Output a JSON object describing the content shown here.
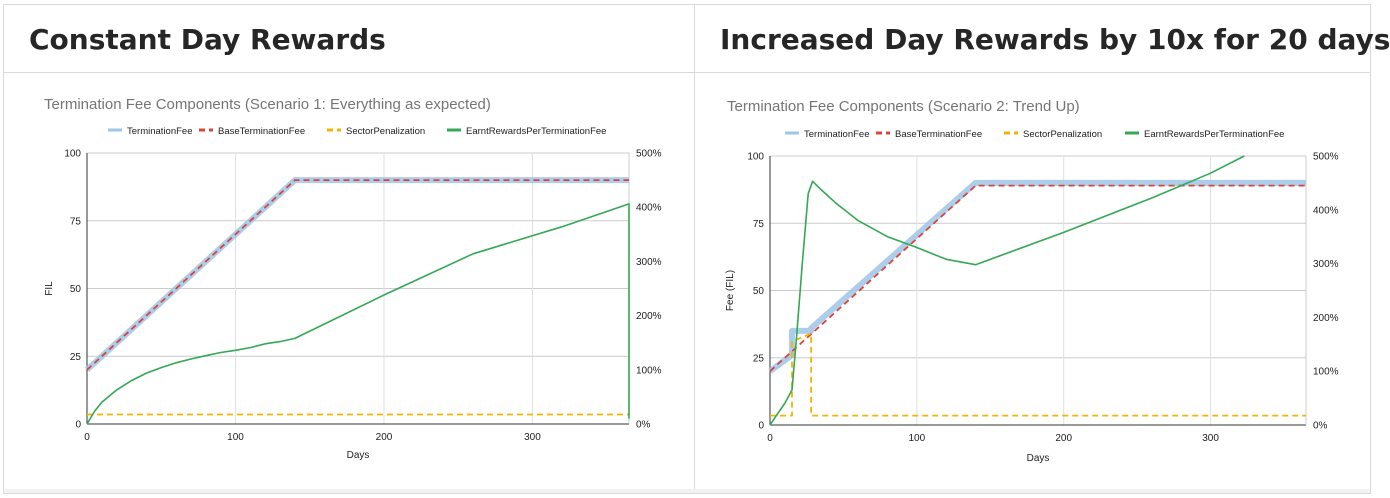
{
  "panels": [
    {
      "heading": "Constant Day Rewards"
    },
    {
      "heading": "Increased Day Rewards by 10x for 20 days"
    }
  ],
  "colors": {
    "TerminationFee": "#9fc5e8",
    "BaseTerminationFee": "#db4437",
    "SectorPenalization": "#f4b400",
    "EarntRewardsPerTerminationFee": "#34a853"
  },
  "chart_data": [
    {
      "type": "line",
      "title": "Termination Fee Components (Scenario 1: Everything as expected)",
      "xlabel": "Days",
      "ylabel": "FIL",
      "xlim": [
        0,
        365
      ],
      "ylim": [
        0,
        100
      ],
      "y2lim": [
        0,
        500
      ],
      "x_ticks": [
        "0",
        "100",
        "200",
        "300"
      ],
      "y_ticks": [
        "0",
        "25",
        "50",
        "75",
        "100"
      ],
      "y2_ticks": [
        "0%",
        "100%",
        "200%",
        "300%",
        "400%",
        "500%"
      ],
      "grid": true,
      "legend": "top",
      "series": [
        {
          "name": "TerminationFee",
          "axis": "left",
          "style": "solid-thick",
          "x": [
            0,
            140,
            365
          ],
          "y": [
            20,
            90,
            90
          ]
        },
        {
          "name": "BaseTerminationFee",
          "axis": "left",
          "style": "dashed",
          "x": [
            0,
            140,
            365
          ],
          "y": [
            20,
            90,
            90
          ]
        },
        {
          "name": "SectorPenalization",
          "axis": "left",
          "style": "dashed",
          "x": [
            0,
            365
          ],
          "y": [
            3.5,
            3.5
          ]
        },
        {
          "name": "EarntRewardsPerTerminationFee",
          "axis": "right",
          "style": "solid",
          "x": [
            0,
            5,
            10,
            20,
            30,
            40,
            50,
            60,
            70,
            80,
            90,
            100,
            110,
            120,
            130,
            140,
            200,
            260,
            320,
            365,
            365
          ],
          "y": [
            0,
            23,
            40,
            63,
            80,
            94,
            104,
            113,
            120,
            126,
            132,
            136,
            141,
            148,
            152,
            158,
            238,
            314,
            364,
            406,
            10
          ]
        }
      ]
    },
    {
      "type": "line",
      "title": "Termination Fee Components (Scenario 2: Trend Up)",
      "xlabel": "Days",
      "ylabel": "Fee (FIL)",
      "xlim": [
        0,
        365
      ],
      "ylim": [
        0,
        100
      ],
      "y2lim": [
        0,
        500
      ],
      "x_ticks": [
        "0",
        "100",
        "200",
        "300"
      ],
      "y_ticks": [
        "0",
        "25",
        "50",
        "75",
        "100"
      ],
      "y2_ticks": [
        "0%",
        "100%",
        "200%",
        "300%",
        "400%",
        "500%"
      ],
      "grid": true,
      "legend": "top",
      "series": [
        {
          "name": "TerminationFee",
          "axis": "left",
          "style": "solid-thick",
          "x": [
            0,
            15,
            15,
            28,
            28,
            140,
            365
          ],
          "y": [
            20,
            26,
            35,
            35,
            36,
            90,
            90
          ]
        },
        {
          "name": "BaseTerminationFee",
          "axis": "left",
          "style": "dashed",
          "x": [
            0,
            140,
            365
          ],
          "y": [
            20,
            89,
            89
          ]
        },
        {
          "name": "SectorPenalization",
          "axis": "left",
          "style": "dashed",
          "x": [
            0,
            15,
            15,
            28,
            28,
            365
          ],
          "y": [
            3.5,
            3.5,
            31,
            34,
            3.5,
            3.5
          ]
        },
        {
          "name": "EarntRewardsPerTerminationFee",
          "axis": "right",
          "style": "solid",
          "x": [
            0,
            5,
            10,
            15,
            18,
            22,
            26,
            29,
            35,
            45,
            60,
            80,
            100,
            120,
            140,
            200,
            260,
            300,
            323
          ],
          "y": [
            0,
            20,
            40,
            65,
            160,
            300,
            430,
            453,
            437,
            412,
            380,
            350,
            330,
            308,
            298,
            358,
            422,
            468,
            500
          ]
        }
      ]
    }
  ]
}
